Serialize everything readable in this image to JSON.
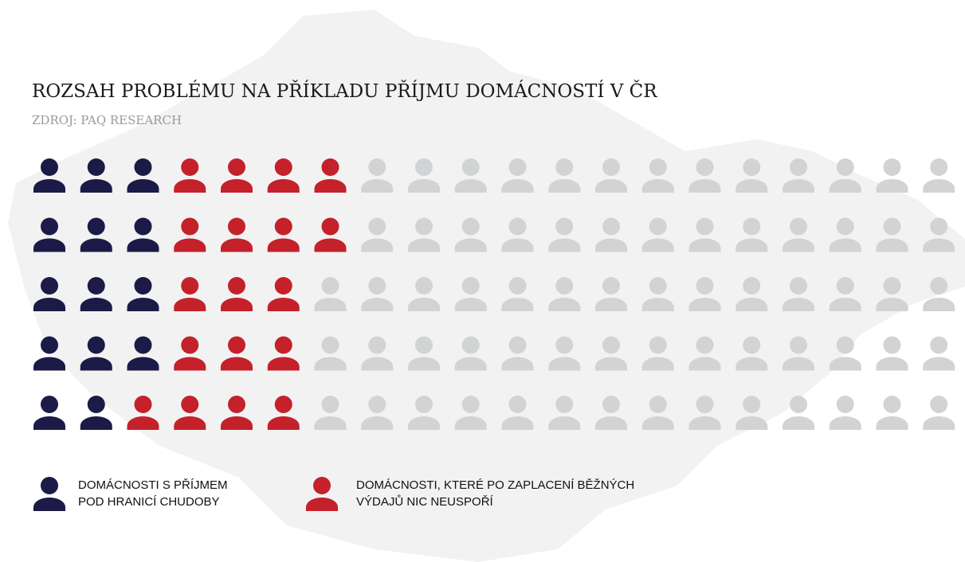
{
  "chart_data": {
    "type": "pictogram",
    "title": "ROZSAH PROBLÉMU NA PŘÍKLADU PŘÍJMU DOMÁCNOSTÍ V ČR",
    "subtitle": "ZDROJ: PAQ RESEARCH",
    "series": [
      {
        "name": "DOMÁCNOSTI S PŘÍJMEM POD HRANICÍ CHUDOBY",
        "color": "#1c1a47",
        "values": [
          3,
          3,
          3,
          3,
          2
        ]
      },
      {
        "name": "DOMÁCNOSTI, KTERÉ PO ZAPLACENÍ BĚŽNÝCH VÝDAJŮ NIC NEUSPOŘÍ",
        "color": "#c4212b",
        "values": [
          4,
          4,
          3,
          3,
          4
        ]
      },
      {
        "color": "#d1d3d4",
        "values": [
          13,
          13,
          14,
          14,
          14
        ]
      }
    ]
  }
}
